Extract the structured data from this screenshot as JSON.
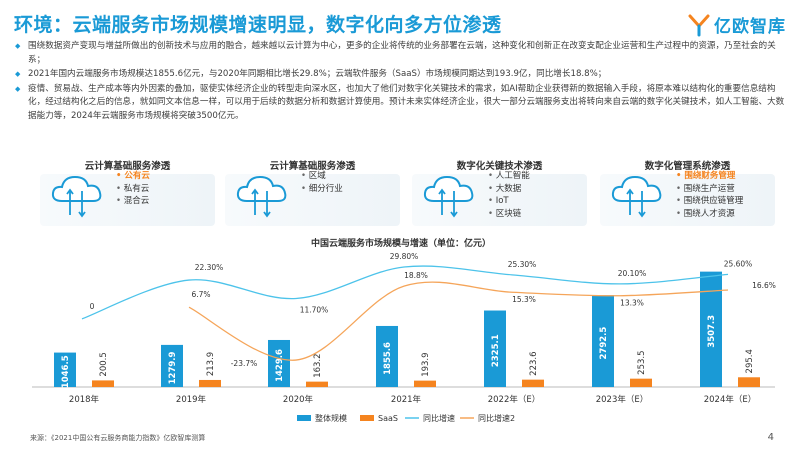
{
  "header": {
    "title": "环境：云端服务市场规模增速明显，数字化向多方位渗透",
    "logo_text": "亿欧智库"
  },
  "bullets": [
    "围绕数据资产变现与增益所做出的创新技术与应用的融合，越来越以云计算为中心，更多的企业将传统的业务部署在云端，这种变化和创新正在改变支配企业运营和生产过程中的资源，乃至社会的关系；",
    "2021年国内云端服务市场规模达1855.6亿元，与2020年同期相比增长29.8%；云端软件服务（SaaS）市场规模同期达到193.9亿，同比增长18.8%；",
    "疫情、贸易战、生产成本等内外因素的叠加，驱使实体经济企业的转型走向深水区，也加大了他们对数字化关键技术的需求，如AI帮助企业获得新的数据输入手段，将原本难以结构化的重要信息结构化，经过结构化之后的信息，就如同文本信息一样，可以用于后续的数据分析和数据计算使用。预计未来实体经济企业，很大一部分云端服务支出将转向来自云端的数字化关键技术，如人工智能、大数据能力等，2024年云端服务市场规模将突破3500亿元。"
  ],
  "categories": [
    {
      "title": "云计算基础服务渗透",
      "items": [
        {
          "label": "公有云",
          "highlight": true
        },
        {
          "label": "私有云",
          "highlight": false
        },
        {
          "label": "混合云",
          "highlight": false
        }
      ]
    },
    {
      "title": "云计算基础服务渗透",
      "items": [
        {
          "label": "区域",
          "highlight": false
        },
        {
          "label": "细分行业",
          "highlight": false
        }
      ]
    },
    {
      "title": "数字化关键技术渗透",
      "items": [
        {
          "label": "人工智能",
          "highlight": false
        },
        {
          "label": "大数据",
          "highlight": false
        },
        {
          "label": "IoT",
          "highlight": false
        },
        {
          "label": "区块链",
          "highlight": false
        }
      ]
    },
    {
      "title": "数字化管理系统渗透",
      "items": [
        {
          "label": "围绕财务管理",
          "highlight": true
        },
        {
          "label": "围绕生产运营",
          "highlight": false
        },
        {
          "label": "围绕供应链管理",
          "highlight": false
        },
        {
          "label": "围绕人才资源",
          "highlight": false
        }
      ]
    }
  ],
  "chart_data": {
    "type": "bar",
    "title": "中国云端服务市场规模与增速（单位：亿元）",
    "categories": [
      "2018年",
      "2019年",
      "2020年",
      "2021年",
      "2022年（E）",
      "2023年（E）",
      "2024年（E）"
    ],
    "series": [
      {
        "name": "整体规模",
        "type": "bar",
        "color": "#1a9ad6",
        "values": [
          1046.5,
          1279.9,
          1429.6,
          1855.6,
          2325.1,
          2792.5,
          3507.3
        ],
        "labels": [
          "1046.5",
          "1279.9",
          "1429.6",
          "1855.6",
          "2325.1",
          "2792.5",
          "3507.3"
        ]
      },
      {
        "name": "SaaS",
        "type": "bar",
        "color": "#f5841f",
        "values": [
          200.5,
          213.9,
          163.2,
          193.9,
          223.6,
          253.5,
          295.4
        ],
        "labels": [
          "200.5",
          "213.9",
          "163.2",
          "193.9",
          "223.6",
          "253.5",
          "295.4"
        ]
      },
      {
        "name": "同比增速",
        "type": "line",
        "color": "#4dc3ea",
        "values": [
          0,
          22.3,
          11.7,
          29.8,
          25.3,
          20.1,
          25.6
        ],
        "labels": [
          "0",
          "22.30%",
          "11.70%",
          "29.80%",
          "25.30%",
          "20.10%",
          "25.60%"
        ]
      },
      {
        "name": "同比增速2",
        "type": "line",
        "color": "#f5a55a",
        "values": [
          null,
          6.7,
          -23.7,
          18.8,
          15.3,
          13.3,
          16.6
        ],
        "labels": [
          "",
          "6.7%",
          "-23.7%",
          "18.8%",
          "15.3%",
          "13.3%",
          "16.6%"
        ]
      }
    ],
    "ylim_bar": [
      0,
      3800
    ],
    "ylim_line": [
      -30,
      35
    ]
  },
  "footer": {
    "source": "来源：《2021中国公有云服务商能力指数》亿欧智库测算",
    "page": "4"
  },
  "colors": {
    "accent": "#1a9ad6",
    "orange": "#f5841f"
  }
}
